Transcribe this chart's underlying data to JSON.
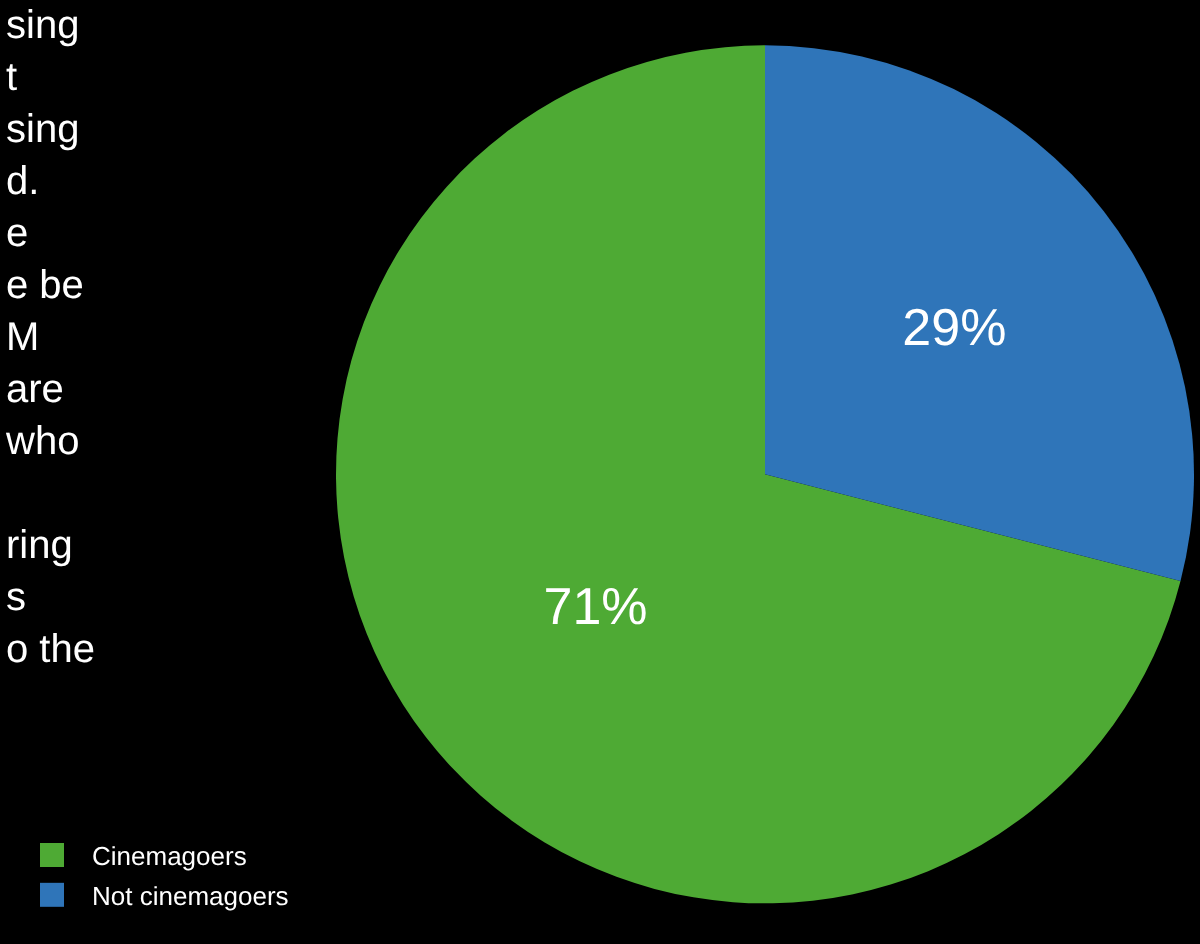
{
  "chart_data": {
    "type": "pie",
    "categories": [
      "Cinemagoers",
      "Not cinemagoers"
    ],
    "values": [
      71,
      29
    ],
    "colors": [
      "#4eaa34",
      "#2f75b9"
    ],
    "value_labels": [
      "71%",
      "29%"
    ],
    "legend": "bottom left",
    "annotations": [
      "sing\nt\nsing\nd.\ne\ne be\nM\nare\nwho\n\nring\ns\no the"
    ]
  }
}
